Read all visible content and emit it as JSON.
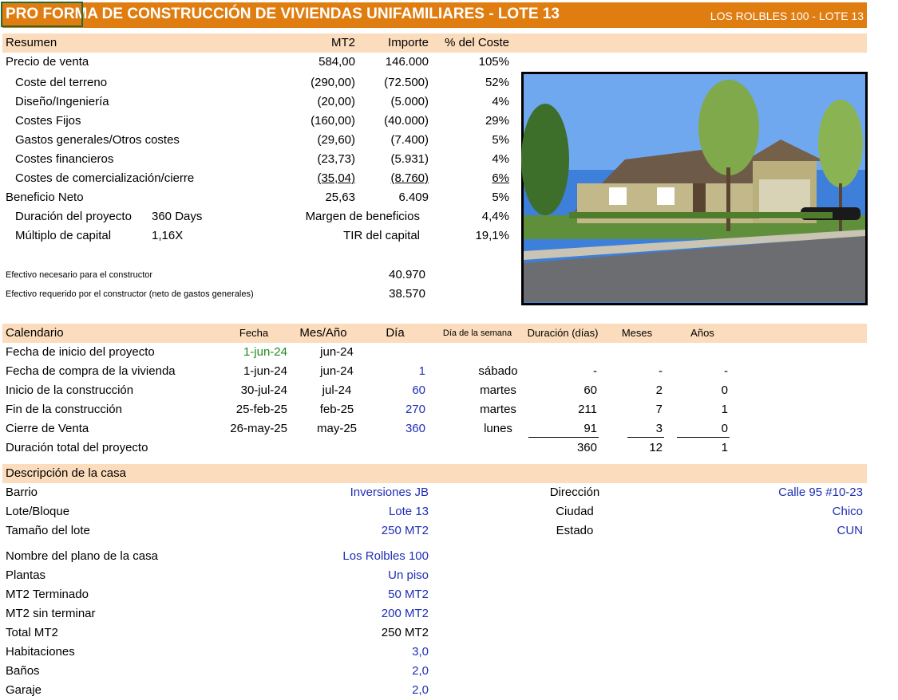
{
  "header": {
    "title": "PRO FORMA DE CONSTRUCCIÓN DE VIVIENDAS UNIFAMILIARES - LOTE 13",
    "subtitle": "LOS ROLBLES 100 - LOTE 13"
  },
  "summary": {
    "headers": [
      "Resumen",
      "MT2",
      "Importe",
      "% del Coste"
    ],
    "rows": [
      [
        "Precio de venta",
        "584,00",
        "146.000",
        "105%"
      ],
      [
        "Coste del terreno",
        "(290,00)",
        "(72.500)",
        "52%"
      ],
      [
        "Diseño/Ingeniería",
        "(20,00)",
        "(5.000)",
        "4%"
      ],
      [
        "Costes Fijos",
        "(160,00)",
        "(40.000)",
        "29%"
      ],
      [
        "Gastos generales/Otros costes",
        "(29,60)",
        "(7.400)",
        "5%"
      ],
      [
        "Costes financieros",
        "(23,73)",
        "(5.931)",
        "4%"
      ],
      [
        "Costes de comercialización/cierre",
        "(35,04)",
        "(8.760)",
        "6%"
      ],
      [
        "Beneficio Neto",
        "25,63",
        "6.409",
        "5%"
      ]
    ],
    "metrics": [
      [
        "Duración del proyecto",
        "360 Days",
        "Margen de beneficios",
        "4,4%"
      ],
      [
        "Múltiplo de capital",
        "1,16X",
        "TIR del capital",
        "19,1%"
      ]
    ],
    "cash": [
      [
        "Efectivo necesario para el constructor",
        "40.970"
      ],
      [
        "Efectivo requerido por el constructor (neto de gastos generales)",
        "38.570"
      ]
    ]
  },
  "calendar": {
    "headers": [
      "Calendario",
      "Fecha",
      "Mes/Año",
      "Día",
      "Día de la semana",
      "Duración (días)",
      "Meses",
      "Años"
    ],
    "rows": [
      [
        "Fecha de inicio del proyecto",
        "1-jun-24",
        "jun-24",
        null,
        null,
        null,
        null,
        null
      ],
      [
        "Fecha de compra de la vivienda",
        "1-jun-24",
        "jun-24",
        "1",
        "sábado",
        "-",
        "-",
        "-"
      ],
      [
        "Inicio de la construcción",
        "30-jul-24",
        "jul-24",
        "60",
        "martes",
        "60",
        "2",
        "0"
      ],
      [
        "Fin de la construcción",
        "25-feb-25",
        "feb-25",
        "270",
        "martes",
        "211",
        "7",
        "1"
      ],
      [
        "Cierre de Venta",
        "26-may-25",
        "may-25",
        "360",
        "lunes",
        "91",
        "3",
        "0"
      ],
      [
        "Duración total del proyecto",
        null,
        null,
        null,
        null,
        "360",
        "12",
        "1"
      ]
    ]
  },
  "house": {
    "title": "Descripción de la casa",
    "location_left": [
      [
        "Barrio",
        "Inversiones JB"
      ],
      [
        "Lote/Bloque",
        "Lote 13"
      ],
      [
        "Tamaño del lote",
        "250 MT2"
      ]
    ],
    "location_right": [
      [
        "Dirección",
        "Calle 95 #10-23"
      ],
      [
        "Ciudad",
        "Chico"
      ],
      [
        "Estado",
        "CUN"
      ]
    ],
    "details": [
      [
        "Nombre del plano de la casa",
        "Los Rolbles 100"
      ],
      [
        "Plantas",
        "Un piso"
      ],
      [
        "MT2 Terminado",
        "50 MT2"
      ],
      [
        "MT2 sin terminar",
        "200 MT2"
      ],
      [
        "Total MT2",
        "250 MT2"
      ],
      [
        "Habitaciones",
        "3,0"
      ],
      [
        "Baños",
        "2,0"
      ],
      [
        "Garaje",
        "2,0"
      ]
    ]
  }
}
